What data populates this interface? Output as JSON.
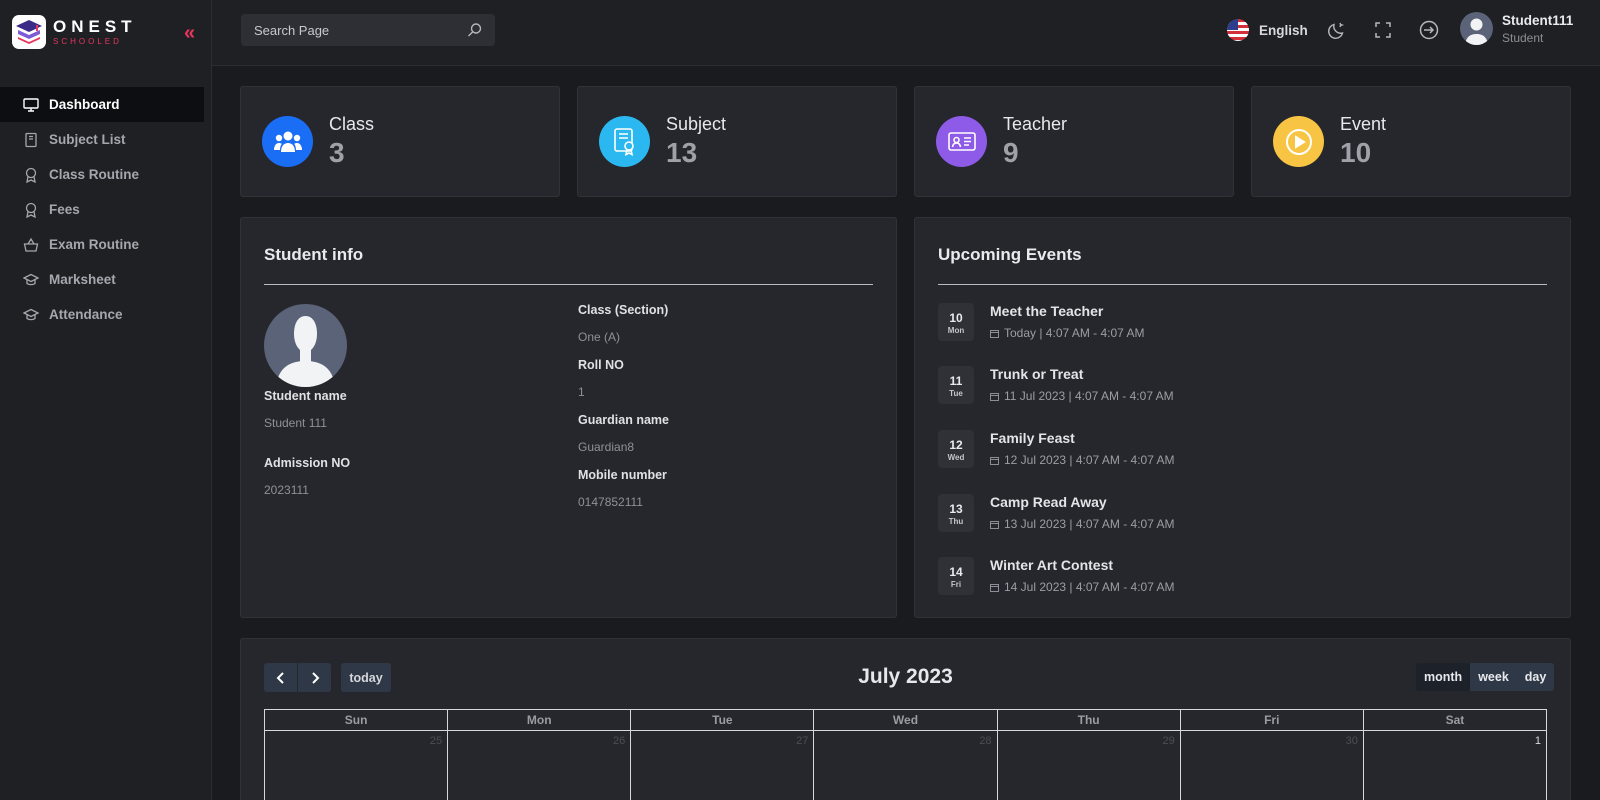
{
  "brand": {
    "name": "ONEST",
    "tagline": "SCHOOLED"
  },
  "sidebar": {
    "items": [
      {
        "label": "Dashboard",
        "icon": "monitor-icon",
        "active": true
      },
      {
        "label": "Subject List",
        "icon": "book-icon"
      },
      {
        "label": "Class Routine",
        "icon": "award-icon"
      },
      {
        "label": "Fees",
        "icon": "award-icon"
      },
      {
        "label": "Exam Routine",
        "icon": "basket-icon"
      },
      {
        "label": "Marksheet",
        "icon": "graduation-cap-icon"
      },
      {
        "label": "Attendance",
        "icon": "graduation-cap-icon"
      }
    ]
  },
  "topbar": {
    "search_placeholder": "Search Page",
    "language": "English",
    "user": {
      "name": "Student111",
      "role": "Student"
    }
  },
  "stats": [
    {
      "label": "Class",
      "value": "3",
      "color": "#1a6ef5",
      "icon": "users-icon"
    },
    {
      "label": "Subject",
      "value": "13",
      "color": "#2bb8f0",
      "icon": "certificate-icon"
    },
    {
      "label": "Teacher",
      "value": "9",
      "color": "#8e5ae8",
      "icon": "id-card-icon"
    },
    {
      "label": "Event",
      "value": "10",
      "color": "#f7c443",
      "icon": "play-circle-icon"
    }
  ],
  "student_info": {
    "title": "Student info",
    "student_name_label": "Student name",
    "student_name": "Student 111",
    "admission_label": "Admission NO",
    "admission_no": "2023111",
    "class_label": "Class (Section)",
    "class_value": "One (A)",
    "roll_label": "Roll NO",
    "roll_value": "1",
    "guardian_label": "Guardian name",
    "guardian_value": "Guardian8",
    "mobile_label": "Mobile number",
    "mobile_value": "0147852111"
  },
  "events": {
    "title": "Upcoming Events",
    "items": [
      {
        "day": "10",
        "dow": "Mon",
        "title": "Meet the Teacher",
        "time": "Today | 4:07 AM - 4:07 AM"
      },
      {
        "day": "11",
        "dow": "Tue",
        "title": "Trunk or Treat",
        "time": "11 Jul 2023 | 4:07 AM - 4:07 AM"
      },
      {
        "day": "12",
        "dow": "Wed",
        "title": "Family Feast",
        "time": "12 Jul 2023 | 4:07 AM - 4:07 AM"
      },
      {
        "day": "13",
        "dow": "Thu",
        "title": "Camp Read Away",
        "time": "13 Jul 2023 | 4:07 AM - 4:07 AM"
      },
      {
        "day": "14",
        "dow": "Fri",
        "title": "Winter Art Contest",
        "time": "14 Jul 2023 | 4:07 AM - 4:07 AM"
      }
    ]
  },
  "calendar": {
    "title": "July 2023",
    "today_label": "today",
    "views": [
      "month",
      "week",
      "day"
    ],
    "active_view": "month",
    "weekdays": [
      "Sun",
      "Mon",
      "Tue",
      "Wed",
      "Thu",
      "Fri",
      "Sat"
    ],
    "first_row": [
      {
        "d": "25",
        "current": false
      },
      {
        "d": "26",
        "current": false
      },
      {
        "d": "27",
        "current": false
      },
      {
        "d": "28",
        "current": false
      },
      {
        "d": "29",
        "current": false
      },
      {
        "d": "30",
        "current": false
      },
      {
        "d": "1",
        "current": true
      }
    ]
  }
}
